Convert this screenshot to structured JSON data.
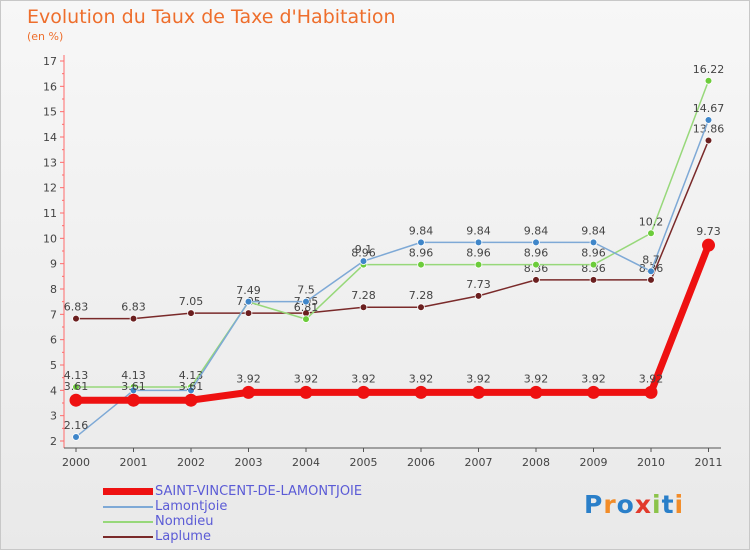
{
  "header": {
    "title": "Evolution du Taux de Taxe d'Habitation",
    "subtitle": "(en %)"
  },
  "logo": {
    "text": "Proxiti",
    "letter_colors": [
      "#2a7fc9",
      "#f28c28",
      "#2a7fc9",
      "#e23a2c",
      "#8bc34a",
      "#2a7fc9",
      "#f28c28"
    ]
  },
  "chart_data": {
    "type": "line",
    "title": "Evolution du Taux de Taxe d'Habitation",
    "ylabel": "(en %)",
    "xlabel": "",
    "x": [
      "2000",
      "2001",
      "2002",
      "2003",
      "2004",
      "2005",
      "2006",
      "2007",
      "2008",
      "2009",
      "2010",
      "2011"
    ],
    "ylim": [
      2,
      17
    ],
    "yticks": [
      2,
      3,
      4,
      5,
      6,
      7,
      8,
      9,
      10,
      11,
      12,
      13,
      14,
      15,
      16,
      17
    ],
    "grid": false,
    "legend_position": "bottom-left",
    "series": [
      {
        "name": "Laplume",
        "color": "#7a2a2a",
        "marker": "#6b1f1f",
        "width": 1.5,
        "values": [
          6.83,
          6.83,
          7.05,
          7.05,
          7.05,
          7.28,
          7.28,
          7.73,
          8.36,
          8.36,
          8.36,
          13.86
        ],
        "labels": [
          "6.83",
          "6.83",
          "7.05",
          "7.05",
          "7.05",
          "7.28",
          "7.28",
          "7.73",
          "8.36",
          "8.36",
          "8.36",
          "13.86"
        ]
      },
      {
        "name": "Nomdieu",
        "color": "#97d87a",
        "marker": "#6ccc3a",
        "width": 1.5,
        "values": [
          4.13,
          4.13,
          4.13,
          7.49,
          6.81,
          8.96,
          8.96,
          8.96,
          8.96,
          8.96,
          10.2,
          16.22
        ],
        "labels": [
          "4.13",
          "4.13",
          "4.13",
          "7.49",
          "6.81",
          "8.96",
          "8.96",
          "8.96",
          "8.96",
          "8.96",
          "10.2",
          "16.22"
        ]
      },
      {
        "name": "Lamontjoie",
        "color": "#7ea9d6",
        "marker": "#3f86c9",
        "width": 1.5,
        "values": [
          2.16,
          4.0,
          4.0,
          7.5,
          7.5,
          9.1,
          9.84,
          9.84,
          9.84,
          9.84,
          8.7,
          14.67
        ],
        "labels": [
          "2.16",
          "",
          "",
          "",
          "7.5",
          "9.1",
          "9.84",
          "9.84",
          "9.84",
          "9.84",
          "8.7",
          "14.67"
        ]
      },
      {
        "name": "SAINT-VINCENT-DE-LAMONTJOIE",
        "color": "#ee1111",
        "marker": "#ee1111",
        "width": 7,
        "values": [
          3.61,
          3.61,
          3.61,
          3.92,
          3.92,
          3.92,
          3.92,
          3.92,
          3.92,
          3.92,
          3.92,
          9.73
        ],
        "labels": [
          "3.61",
          "3.61",
          "3.61",
          "3.92",
          "3.92",
          "3.92",
          "3.92",
          "3.92",
          "3.92",
          "3.92",
          "3.92",
          "9.73"
        ]
      }
    ],
    "legend_order": [
      "SAINT-VINCENT-DE-LAMONTJOIE",
      "Lamontjoie",
      "Nomdieu",
      "Laplume"
    ]
  }
}
